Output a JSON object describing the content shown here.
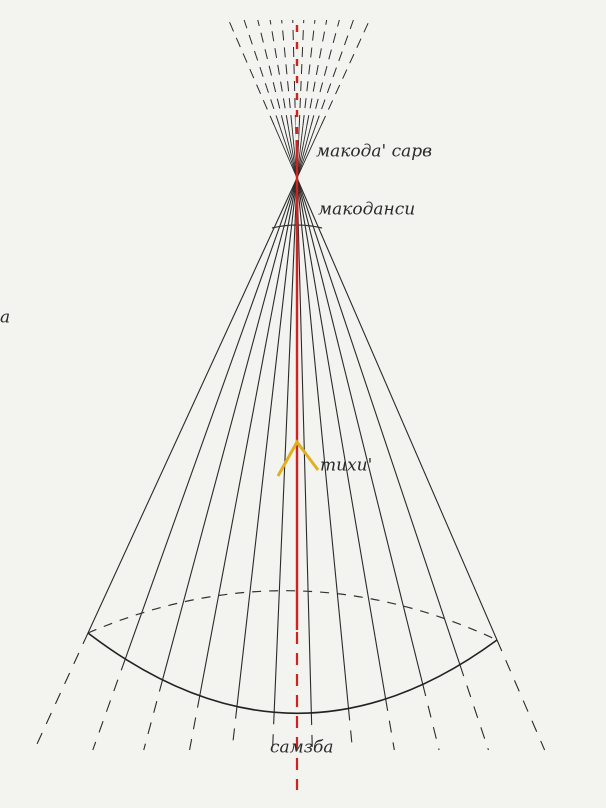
{
  "labels": {
    "top": "макода' сарв",
    "upper": "макоданси",
    "middle": "тихи'",
    "bottom": "самзба",
    "margin": "a"
  }
}
